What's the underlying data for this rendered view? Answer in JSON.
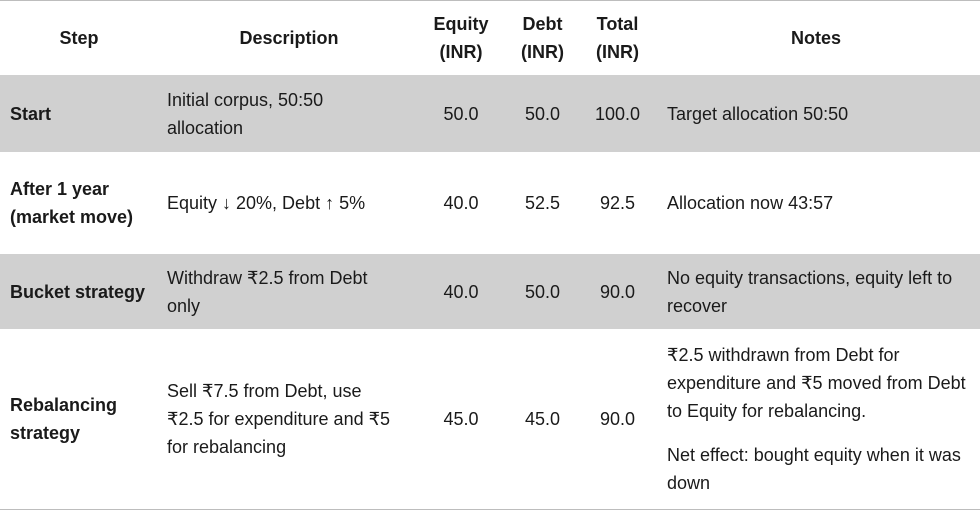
{
  "table": {
    "header": [
      "Step",
      "Description",
      "Equity (INR)",
      "Debt (INR)",
      "Total (INR)",
      "Notes"
    ],
    "rows": [
      [
        "Start",
        "Initial corpus, 50:50 allocation",
        "50.0",
        "50.0",
        "100.0",
        [
          "Target allocation 50:50"
        ]
      ],
      [
        "After 1 year (market move)",
        "Equity ↓ 20%, Debt ↑ 5%",
        "40.0",
        "52.5",
        "92.5",
        [
          "Allocation now 43:57"
        ]
      ],
      [
        "Bucket strategy",
        "Withdraw ₹2.5 from Debt only",
        "40.0",
        "50.0",
        "90.0",
        [
          "No equity transactions, equity left to recover"
        ]
      ],
      [
        "Rebalancing strategy",
        "Sell ₹7.5 from Debt, use ₹2.5 for expenditure and ₹5 for rebalancing",
        "45.0",
        "45.0",
        "90.0",
        [
          "₹2.5 withdrawn from Debt for expenditure and ₹5 moved from Debt to Equity for rebalancing.",
          "Net effect: bought equity when it was down"
        ]
      ]
    ]
  }
}
